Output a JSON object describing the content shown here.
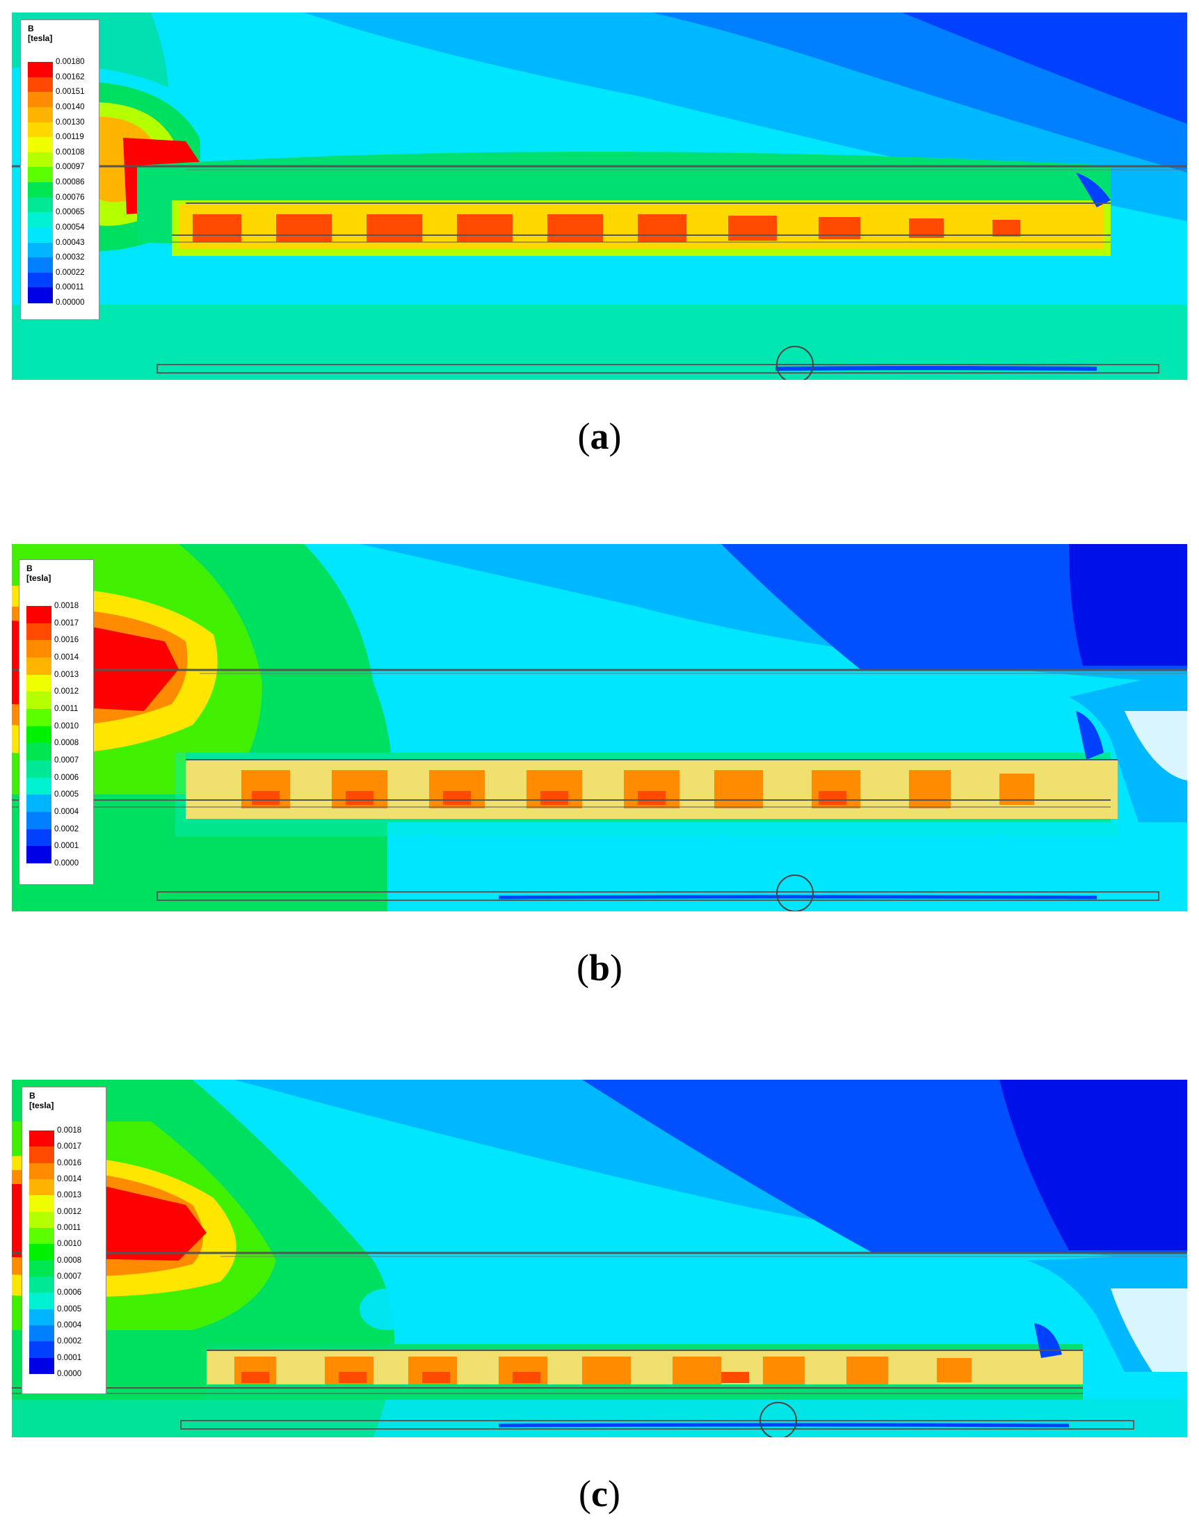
{
  "panels": [
    {
      "id": "a",
      "caption_letter": "a",
      "legend": {
        "quantity": "B",
        "unit": "[tesla]",
        "ticks": [
          "0.00180",
          "0.00162",
          "0.00151",
          "0.00140",
          "0.00130",
          "0.00119",
          "0.00108",
          "0.00097",
          "0.00086",
          "0.00076",
          "0.00065",
          "0.00054",
          "0.00043",
          "0.00032",
          "0.00022",
          "0.00011",
          "0.00000"
        ]
      }
    },
    {
      "id": "b",
      "caption_letter": "b",
      "legend": {
        "quantity": "B",
        "unit": "[tesla]",
        "ticks": [
          "0.0018",
          "0.0017",
          "0.0016",
          "0.0014",
          "0.0013",
          "0.0012",
          "0.0011",
          "0.0010",
          "0.0008",
          "0.0007",
          "0.0006",
          "0.0005",
          "0.0004",
          "0.0002",
          "0.0001",
          "0.0000"
        ]
      }
    },
    {
      "id": "c",
      "caption_letter": "c",
      "legend": {
        "quantity": "B",
        "unit": "[tesla]",
        "ticks": [
          "0.0018",
          "0.0017",
          "0.0016",
          "0.0014",
          "0.0013",
          "0.0012",
          "0.0011",
          "0.0010",
          "0.0008",
          "0.0007",
          "0.0006",
          "0.0005",
          "0.0004",
          "0.0002",
          "0.0001",
          "0.0000"
        ]
      }
    }
  ],
  "colormap": [
    "#ff0000",
    "#ff4a00",
    "#ff8c00",
    "#ffb400",
    "#ffd800",
    "#f0ff00",
    "#b4ff00",
    "#5cff00",
    "#00f000",
    "#00e650",
    "#00e896",
    "#00f0d2",
    "#00e6ff",
    "#00b4ff",
    "#0080ff",
    "#0040ff",
    "#0000e6"
  ],
  "colors": {
    "sky_blue": "#00b8ff",
    "deep_blue": "#0050ff",
    "navy": "#0010e8",
    "cyan": "#00e6ff",
    "green": "#00e070",
    "bright_green": "#40f000",
    "yellow": "#ffe600",
    "red": "#ff0000"
  }
}
